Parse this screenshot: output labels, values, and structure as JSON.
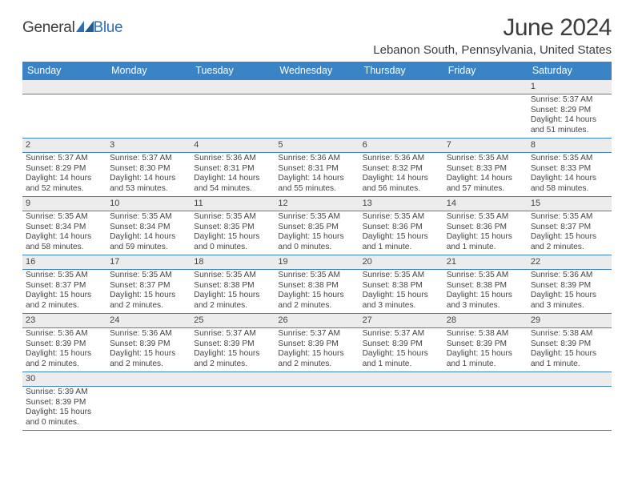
{
  "logo": {
    "textA": "General",
    "textB": "Blue",
    "colorA": "#3c3c3c",
    "colorB": "#2f6fb0",
    "shapeColor": "#2f6fb0"
  },
  "title": "June 2024",
  "location": "Lebanon South, Pennsylvania, United States",
  "colors": {
    "headerBar": "#3a83c5",
    "headerText": "#ffffff",
    "rowBorder": "#3a83c5",
    "dayNumBg": "#ececec",
    "bodyText": "#444444"
  },
  "dayNames": [
    "Sunday",
    "Monday",
    "Tuesday",
    "Wednesday",
    "Thursday",
    "Friday",
    "Saturday"
  ],
  "weeks": [
    {
      "nums": [
        "",
        "",
        "",
        "",
        "",
        "",
        "1"
      ],
      "cells": [
        null,
        null,
        null,
        null,
        null,
        null,
        {
          "sr": "Sunrise: 5:37 AM",
          "ss": "Sunset: 8:29 PM",
          "dl": "Daylight: 14 hours and 51 minutes."
        }
      ]
    },
    {
      "nums": [
        "2",
        "3",
        "4",
        "5",
        "6",
        "7",
        "8"
      ],
      "cells": [
        {
          "sr": "Sunrise: 5:37 AM",
          "ss": "Sunset: 8:29 PM",
          "dl": "Daylight: 14 hours and 52 minutes."
        },
        {
          "sr": "Sunrise: 5:37 AM",
          "ss": "Sunset: 8:30 PM",
          "dl": "Daylight: 14 hours and 53 minutes."
        },
        {
          "sr": "Sunrise: 5:36 AM",
          "ss": "Sunset: 8:31 PM",
          "dl": "Daylight: 14 hours and 54 minutes."
        },
        {
          "sr": "Sunrise: 5:36 AM",
          "ss": "Sunset: 8:31 PM",
          "dl": "Daylight: 14 hours and 55 minutes."
        },
        {
          "sr": "Sunrise: 5:36 AM",
          "ss": "Sunset: 8:32 PM",
          "dl": "Daylight: 14 hours and 56 minutes."
        },
        {
          "sr": "Sunrise: 5:35 AM",
          "ss": "Sunset: 8:33 PM",
          "dl": "Daylight: 14 hours and 57 minutes."
        },
        {
          "sr": "Sunrise: 5:35 AM",
          "ss": "Sunset: 8:33 PM",
          "dl": "Daylight: 14 hours and 58 minutes."
        }
      ]
    },
    {
      "nums": [
        "9",
        "10",
        "11",
        "12",
        "13",
        "14",
        "15"
      ],
      "cells": [
        {
          "sr": "Sunrise: 5:35 AM",
          "ss": "Sunset: 8:34 PM",
          "dl": "Daylight: 14 hours and 58 minutes."
        },
        {
          "sr": "Sunrise: 5:35 AM",
          "ss": "Sunset: 8:34 PM",
          "dl": "Daylight: 14 hours and 59 minutes."
        },
        {
          "sr": "Sunrise: 5:35 AM",
          "ss": "Sunset: 8:35 PM",
          "dl": "Daylight: 15 hours and 0 minutes."
        },
        {
          "sr": "Sunrise: 5:35 AM",
          "ss": "Sunset: 8:35 PM",
          "dl": "Daylight: 15 hours and 0 minutes."
        },
        {
          "sr": "Sunrise: 5:35 AM",
          "ss": "Sunset: 8:36 PM",
          "dl": "Daylight: 15 hours and 1 minute."
        },
        {
          "sr": "Sunrise: 5:35 AM",
          "ss": "Sunset: 8:36 PM",
          "dl": "Daylight: 15 hours and 1 minute."
        },
        {
          "sr": "Sunrise: 5:35 AM",
          "ss": "Sunset: 8:37 PM",
          "dl": "Daylight: 15 hours and 2 minutes."
        }
      ]
    },
    {
      "nums": [
        "16",
        "17",
        "18",
        "19",
        "20",
        "21",
        "22"
      ],
      "cells": [
        {
          "sr": "Sunrise: 5:35 AM",
          "ss": "Sunset: 8:37 PM",
          "dl": "Daylight: 15 hours and 2 minutes."
        },
        {
          "sr": "Sunrise: 5:35 AM",
          "ss": "Sunset: 8:37 PM",
          "dl": "Daylight: 15 hours and 2 minutes."
        },
        {
          "sr": "Sunrise: 5:35 AM",
          "ss": "Sunset: 8:38 PM",
          "dl": "Daylight: 15 hours and 2 minutes."
        },
        {
          "sr": "Sunrise: 5:35 AM",
          "ss": "Sunset: 8:38 PM",
          "dl": "Daylight: 15 hours and 2 minutes."
        },
        {
          "sr": "Sunrise: 5:35 AM",
          "ss": "Sunset: 8:38 PM",
          "dl": "Daylight: 15 hours and 3 minutes."
        },
        {
          "sr": "Sunrise: 5:35 AM",
          "ss": "Sunset: 8:38 PM",
          "dl": "Daylight: 15 hours and 3 minutes."
        },
        {
          "sr": "Sunrise: 5:36 AM",
          "ss": "Sunset: 8:39 PM",
          "dl": "Daylight: 15 hours and 3 minutes."
        }
      ]
    },
    {
      "nums": [
        "23",
        "24",
        "25",
        "26",
        "27",
        "28",
        "29"
      ],
      "cells": [
        {
          "sr": "Sunrise: 5:36 AM",
          "ss": "Sunset: 8:39 PM",
          "dl": "Daylight: 15 hours and 2 minutes."
        },
        {
          "sr": "Sunrise: 5:36 AM",
          "ss": "Sunset: 8:39 PM",
          "dl": "Daylight: 15 hours and 2 minutes."
        },
        {
          "sr": "Sunrise: 5:37 AM",
          "ss": "Sunset: 8:39 PM",
          "dl": "Daylight: 15 hours and 2 minutes."
        },
        {
          "sr": "Sunrise: 5:37 AM",
          "ss": "Sunset: 8:39 PM",
          "dl": "Daylight: 15 hours and 2 minutes."
        },
        {
          "sr": "Sunrise: 5:37 AM",
          "ss": "Sunset: 8:39 PM",
          "dl": "Daylight: 15 hours and 1 minute."
        },
        {
          "sr": "Sunrise: 5:38 AM",
          "ss": "Sunset: 8:39 PM",
          "dl": "Daylight: 15 hours and 1 minute."
        },
        {
          "sr": "Sunrise: 5:38 AM",
          "ss": "Sunset: 8:39 PM",
          "dl": "Daylight: 15 hours and 1 minute."
        }
      ]
    },
    {
      "nums": [
        "30",
        "",
        "",
        "",
        "",
        "",
        ""
      ],
      "cells": [
        {
          "sr": "Sunrise: 5:39 AM",
          "ss": "Sunset: 8:39 PM",
          "dl": "Daylight: 15 hours and 0 minutes."
        },
        null,
        null,
        null,
        null,
        null,
        null
      ]
    }
  ]
}
